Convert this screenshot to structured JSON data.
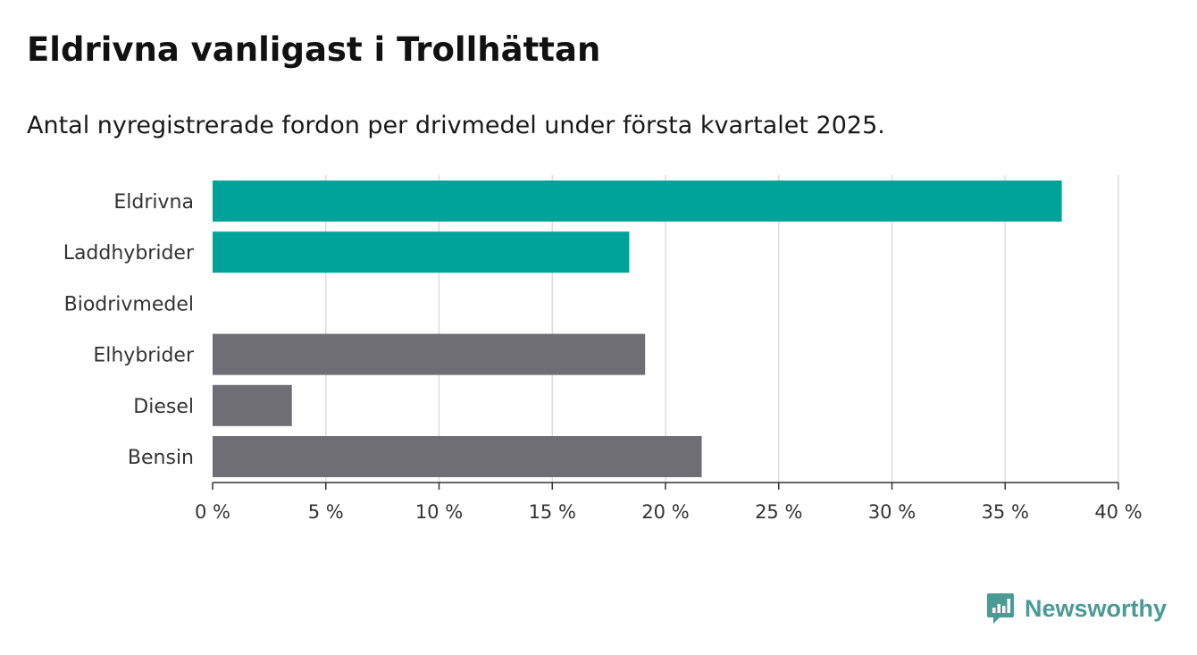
{
  "header": {
    "title": "Eldrivna vanligast i Trollhättan",
    "subtitle": "Antal nyregistrerade fordon per drivmedel under första kvartalet 2025."
  },
  "brand": {
    "name": "Newsworthy",
    "icon": "newsworthy-logo-icon",
    "color": "#4a9a95"
  },
  "chart_data": {
    "type": "bar",
    "orientation": "horizontal",
    "title": "Eldrivna vanligast i Trollhättan",
    "subtitle": "Antal nyregistrerade fordon per drivmedel under första kvartalet 2025.",
    "categories": [
      "Eldrivna",
      "Laddhybrider",
      "Biodrivmedel",
      "Elhybrider",
      "Diesel",
      "Bensin"
    ],
    "values": [
      37.5,
      18.4,
      0,
      19.1,
      3.5,
      21.6
    ],
    "bar_colors": [
      "#00a39a",
      "#00a39a",
      "#00a39a",
      "#6f6e74",
      "#6f6e74",
      "#6f6e74"
    ],
    "unit": "%",
    "xlim": [
      0,
      40
    ],
    "xticks": [
      0,
      5,
      10,
      15,
      20,
      25,
      30,
      35,
      40
    ],
    "xtick_labels": [
      "0 %",
      "5 %",
      "10 %",
      "15 %",
      "20 %",
      "25 %",
      "30 %",
      "35 %",
      "40 %"
    ],
    "xlabel": "",
    "ylabel": "",
    "grid": true
  }
}
